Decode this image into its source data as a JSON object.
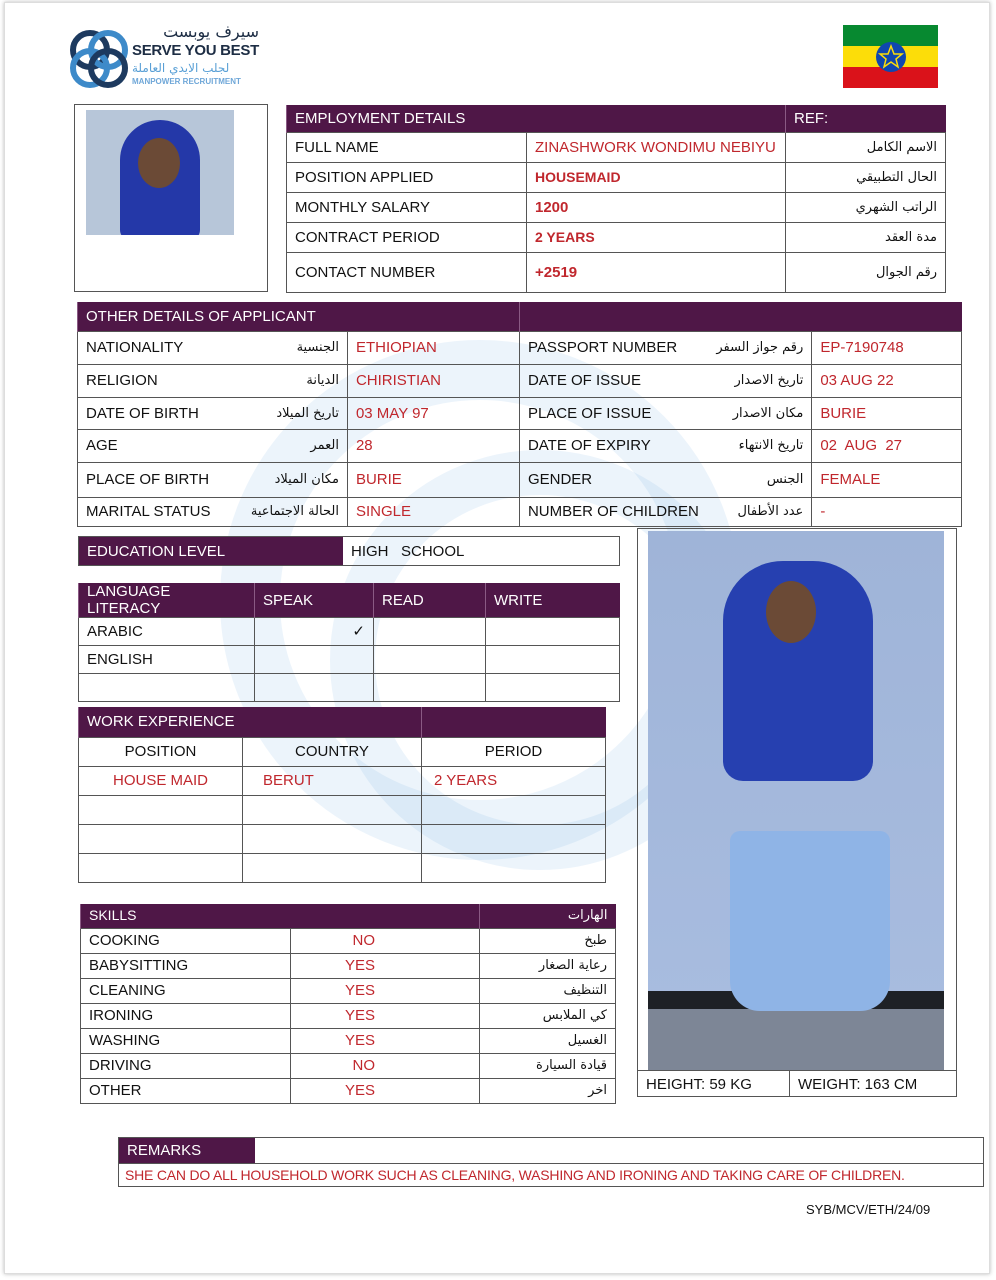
{
  "logo": {
    "arabic": "سيرف يوبست",
    "name": "SERVE YOU BEST",
    "arabic_sub": "لجلب الايدي العاملة",
    "sub": "MANPOWER RECRUITMENT"
  },
  "flag": {
    "country": "Ethiopia",
    "colors": [
      "#078930",
      "#fcdd09",
      "#da121a",
      "#0f47af"
    ]
  },
  "colors": {
    "header": "#4f1747",
    "value": "#c0272d"
  },
  "employment": {
    "title": "EMPLOYMENT DETAILS",
    "ref": "REF:",
    "rows": [
      {
        "label": "FULL NAME",
        "value": "ZINASHWORK WONDIMU NEBIYU",
        "arabic": "الاسم الكامل"
      },
      {
        "label": "POSITION APPLIED",
        "value": "HOUSEMAID",
        "arabic": "الحال التطبيقي"
      },
      {
        "label": "MONTHLY SALARY",
        "value": "1200",
        "arabic": "الراتب الشهري"
      },
      {
        "label": "CONTRACT PERIOD",
        "value": "2 YEARS",
        "arabic": "مدة العقد"
      },
      {
        "label": "CONTACT NUMBER",
        "value": "+2519",
        "arabic": "رقم الجوال"
      }
    ]
  },
  "other": {
    "title": "OTHER DETAILS OF APPLICANT",
    "rows": [
      {
        "l1": "NATIONALITY",
        "a1": "الجنسية",
        "v1": "ETHIOPIAN",
        "l2": "PASSPORT NUMBER",
        "a2": "رقم جواز السفر",
        "v2": "EP-7190748"
      },
      {
        "l1": "RELIGION",
        "a1": "الديانة",
        "v1": "CHIRISTIAN",
        "l2": "DATE OF ISSUE",
        "a2": "تاريخ الاصدار",
        "v2": "03 AUG 22"
      },
      {
        "l1": "DATE OF BIRTH",
        "a1": "تاريخ الميلاد",
        "v1": "03 MAY 97",
        "l2": "PLACE OF ISSUE",
        "a2": "مكان الاصدار",
        "v2": "BURIE"
      },
      {
        "l1": "AGE",
        "a1": "العمر",
        "v1": "28",
        "l2": "DATE OF EXPIRY",
        "a2": "تاريخ الانتهاء",
        "v2": "02  AUG  27"
      },
      {
        "l1": "PLACE OF BIRTH",
        "a1": "مكان الميلاد",
        "v1": "BURIE",
        "l2": "GENDER",
        "a2": "الجنس",
        "v2": "FEMALE"
      },
      {
        "l1": "MARITAL STATUS",
        "a1": "الحالة الاجتماعية",
        "v1": "SINGLE",
        "l2": "NUMBER OF CHILDREN",
        "a2": "عدد الأطفال",
        "v2": "-"
      }
    ]
  },
  "education": {
    "label": "EDUCATION LEVEL",
    "value": "HIGH   SCHOOL"
  },
  "language": {
    "headers": [
      "LANGUAGE LITERACY",
      "SPEAK",
      "READ",
      "WRITE"
    ],
    "rows": [
      {
        "lang": "ARABIC",
        "speak": "✓",
        "read": "",
        "write": ""
      },
      {
        "lang": "ENGLISH",
        "speak": "",
        "read": "",
        "write": ""
      },
      {
        "lang": "",
        "speak": "",
        "read": "",
        "write": ""
      }
    ]
  },
  "work": {
    "title": "WORK EXPERIENCE",
    "headers": [
      "POSITION",
      "COUNTRY",
      "PERIOD"
    ],
    "rows": [
      {
        "position": "HOUSE MAID",
        "country": "BERUT",
        "period": "2 YEARS"
      },
      {
        "position": "",
        "country": "",
        "period": ""
      },
      {
        "position": "",
        "country": "",
        "period": ""
      },
      {
        "position": "",
        "country": "",
        "period": ""
      }
    ]
  },
  "skills": {
    "title": "SKILLS",
    "arabic_title": "الهارات",
    "rows": [
      {
        "skill": "COOKING",
        "value": "NO",
        "arabic": "طبخ"
      },
      {
        "skill": "BABYSITTING",
        "value": "YES",
        "arabic": "رعاية الصغار"
      },
      {
        "skill": "CLEANING",
        "value": "YES",
        "arabic": "التنظيف"
      },
      {
        "skill": "IRONING",
        "value": "YES",
        "arabic": "كي الملابس"
      },
      {
        "skill": "WASHING",
        "value": "YES",
        "arabic": "الغسيل"
      },
      {
        "skill": "DRIVING",
        "value": "NO",
        "arabic": "قيادة السيارة"
      },
      {
        "skill": "OTHER",
        "value": "YES",
        "arabic": "اخر"
      }
    ]
  },
  "measures": {
    "height": "HEIGHT: 59 KG",
    "weight": "WEIGHT: 163 CM"
  },
  "remarks": {
    "label": "REMARKS",
    "text": "SHE CAN DO ALL HOUSEHOLD WORK SUCH AS CLEANING, WASHING AND IRONING AND TAKING CARE OF CHILDREN."
  },
  "reference_code": "SYB/MCV/ETH/24/09"
}
